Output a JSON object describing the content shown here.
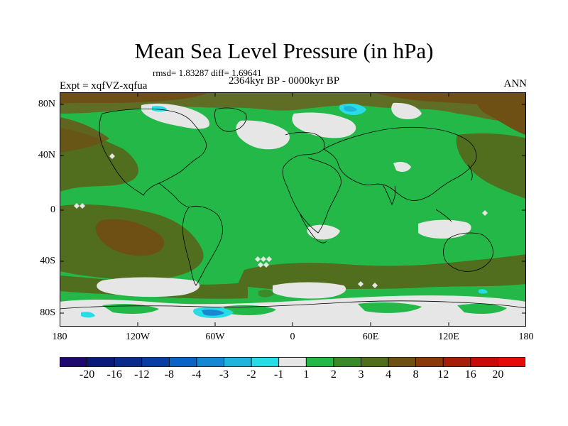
{
  "title": "Mean Sea Level Pressure (in hPa)",
  "stats": "rmsd= 1.83287 diff= 1.69641",
  "experiment": "Expt = xqfVZ-xqfua",
  "period": "2364kyr BP - 0000kyr BP",
  "season": "ANN",
  "map": {
    "lat_labels": [
      "80N",
      "40N",
      "0",
      "40S",
      "80S"
    ],
    "lon_labels": [
      "180",
      "120W",
      "60W",
      "0",
      "60E",
      "120E",
      "180"
    ]
  },
  "colorbar": {
    "labels": [
      "-20",
      "-16",
      "-12",
      "-8",
      "-4",
      "-3",
      "-2",
      "-1",
      "1",
      "2",
      "3",
      "4",
      "8",
      "12",
      "16",
      "20"
    ],
    "colors": [
      "#1e0a6e",
      "#0a1a7a",
      "#0a2a8c",
      "#0a3ca6",
      "#0a64c8",
      "#1488d2",
      "#1eb4dc",
      "#28dce6",
      "#e6e6e6",
      "#23b848",
      "#3a8a2a",
      "#506e1e",
      "#6e5014",
      "#8a3a0a",
      "#a61e0a",
      "#c80a0a",
      "#e60a0a"
    ]
  },
  "legend_colors": {
    "background_green": "#23b848",
    "dark_green": "#3a8a2a",
    "olive": "#5f6e24",
    "brown": "#6e5014",
    "grey": "#e6e6e6",
    "cyan": "#28dce6",
    "blue": "#1488d2"
  }
}
